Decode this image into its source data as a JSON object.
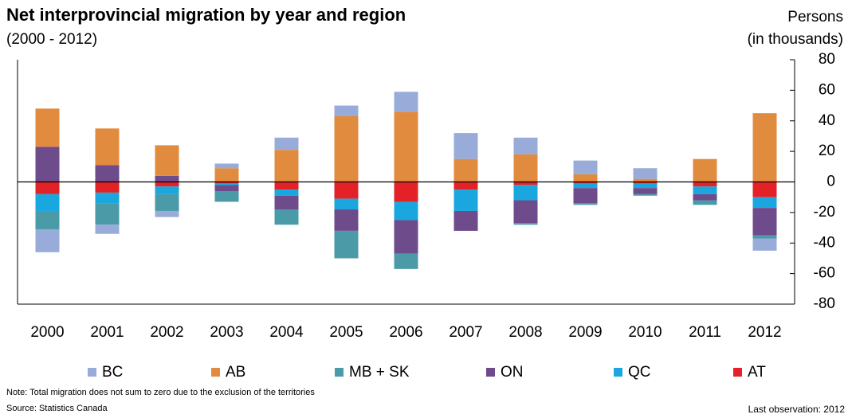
{
  "chart_data": {
    "type": "stacked_bar",
    "title": "Net interprovincial migration by year and region",
    "subtitle": "(2000 - 2012)",
    "ylabel": [
      "Persons",
      "(in thousands)"
    ],
    "categories": [
      "2000",
      "2001",
      "2002",
      "2003",
      "2004",
      "2005",
      "2006",
      "2007",
      "2008",
      "2009",
      "2010",
      "2011",
      "2012"
    ],
    "series": [
      {
        "name": "BC",
        "color": "#99acd9",
        "values": [
          -15,
          -6,
          -4,
          3,
          8,
          7,
          13,
          17,
          11,
          9,
          7,
          0,
          -8
        ]
      },
      {
        "name": "AB",
        "color": "#e18b3f",
        "values": [
          25,
          24,
          20,
          9,
          21,
          43,
          46,
          15,
          18,
          5,
          2,
          15,
          45
        ]
      },
      {
        "name": "MB + SK",
        "color": "#4a9aa8",
        "values": [
          -12,
          -14,
          -11,
          -7,
          -10,
          -18,
          -10,
          0,
          -1,
          -1,
          -1,
          -3,
          -2
        ]
      },
      {
        "name": "ON",
        "color": "#6e4b8b",
        "values": [
          23,
          11,
          4,
          -4,
          -9,
          -14,
          -22,
          -13,
          -15,
          -10,
          -4,
          -4,
          -18
        ]
      },
      {
        "name": "QC",
        "color": "#1aa7e0",
        "values": [
          -11,
          -7,
          -5,
          -1,
          -4,
          -7,
          -12,
          -14,
          -10,
          -3,
          -3,
          -5,
          -7
        ]
      },
      {
        "name": "AT",
        "color": "#e32228",
        "values": [
          -8,
          -7,
          -3,
          -1,
          -5,
          -11,
          -13,
          -5,
          -2,
          -1,
          -1,
          -3,
          -10
        ]
      }
    ],
    "ylim": [
      -80,
      80
    ],
    "yticks": [
      -80,
      -60,
      -40,
      -20,
      0,
      20,
      40,
      60,
      80
    ],
    "note": "Note: Total migration does not sum to zero due to the exclusion of the territories",
    "source": "Source: Statistics Canada",
    "last_observation": "Last observation: 2012"
  }
}
